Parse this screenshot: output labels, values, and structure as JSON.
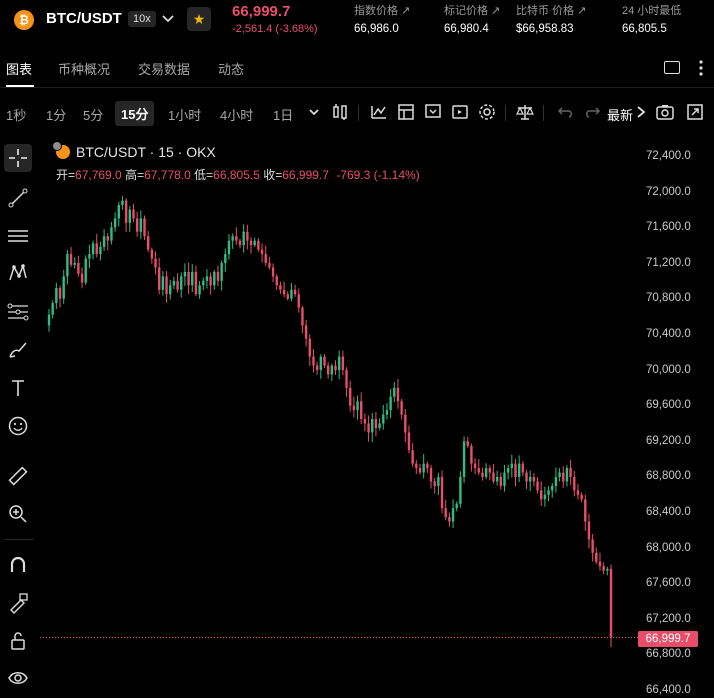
{
  "header": {
    "coin_symbol": "₿",
    "pair": "BTC/USDT",
    "leverage": "10x",
    "last_price": "66,999.7",
    "change": "-2,561.4 (-3.68%)",
    "stats": [
      {
        "label": "指数价格 ↗",
        "value": "66,986.0"
      },
      {
        "label": "标记价格 ↗",
        "value": "66,980.4"
      },
      {
        "label": "比特币 价格 ↗",
        "value": "$66,958.83"
      },
      {
        "label": "24 小时最低",
        "value": "66,805.5"
      }
    ]
  },
  "tabs": [
    "图表",
    "币种概况",
    "交易数据",
    "动态"
  ],
  "timeframes": [
    "1秒",
    "1分",
    "5分",
    "15分",
    "1小时",
    "4小时",
    "1日"
  ],
  "active_timeframe": "15分",
  "toolbar_latest": "最新",
  "chart": {
    "title": "BTC/USDT · 15 · OKX",
    "ohlc": {
      "open_label": "开=",
      "open": "67,769.0",
      "high_label": "高=",
      "high": "67,778.0",
      "low_label": "低=",
      "low": "66,805.5",
      "close_label": "收=",
      "close": "66,999.7",
      "change": "-769.3 (-1.14%)"
    },
    "y_ticks": [
      "72,400.0",
      "72,000.0",
      "71,600.0",
      "71,200.0",
      "70,800.0",
      "70,400.0",
      "70,000.0",
      "69,600.0",
      "69,200.0",
      "68,800.0",
      "68,400.0",
      "68,000.0",
      "67,600.0",
      "67,200.0",
      "66,800.0",
      "66,400.0"
    ],
    "current_price_tag": "66,999.7",
    "colors": {
      "up": "#2ebd85",
      "down": "#e84e6a"
    }
  },
  "chart_data": {
    "type": "candlestick",
    "title": "BTC/USDT · 15 · OKX",
    "ylim": [
      66400,
      72400
    ],
    "close_series": [
      70620,
      70750,
      70920,
      70800,
      71050,
      71300,
      71180,
      71200,
      71080,
      70980,
      71250,
      71300,
      71420,
      71300,
      71380,
      71500,
      71450,
      71600,
      71700,
      71850,
      71900,
      71650,
      71800,
      71700,
      71550,
      71700,
      71500,
      71350,
      71250,
      71150,
      70900,
      71050,
      70850,
      70950,
      71000,
      70900,
      71050,
      71100,
      70950,
      71100,
      70850,
      70950,
      71000,
      71050,
      70950,
      71100,
      71000,
      71200,
      71300,
      71450,
      71500,
      71450,
      71400,
      71550,
      71450,
      71400,
      71450,
      71350,
      71300,
      71200,
      71150,
      71050,
      70950,
      70900,
      70850,
      70800,
      70900,
      70850,
      70700,
      70500,
      70350,
      70150,
      70050,
      70000,
      70150,
      70050,
      69950,
      70050,
      70000,
      70150,
      70000,
      69800,
      69600,
      69550,
      69650,
      69450,
      69400,
      69300,
      69450,
      69350,
      69400,
      69500,
      69550,
      69700,
      69800,
      69650,
      69500,
      69300,
      69100,
      68950,
      68900,
      68850,
      68950,
      68900,
      68750,
      68700,
      68800,
      68450,
      68350,
      68300,
      68450,
      68500,
      68800,
      69200,
      69150,
      68950,
      68900,
      68850,
      68800,
      68900,
      68850,
      68750,
      68800,
      68700,
      68850,
      68900,
      68950,
      68800,
      68950,
      68850,
      68750,
      68800,
      68750,
      68650,
      68550,
      68600,
      68650,
      68700,
      68800,
      68850,
      68750,
      68900,
      68800,
      68650,
      68600,
      68550,
      68300,
      68100,
      67950,
      67850,
      67800,
      67750,
      67769,
      66999.7
    ]
  }
}
